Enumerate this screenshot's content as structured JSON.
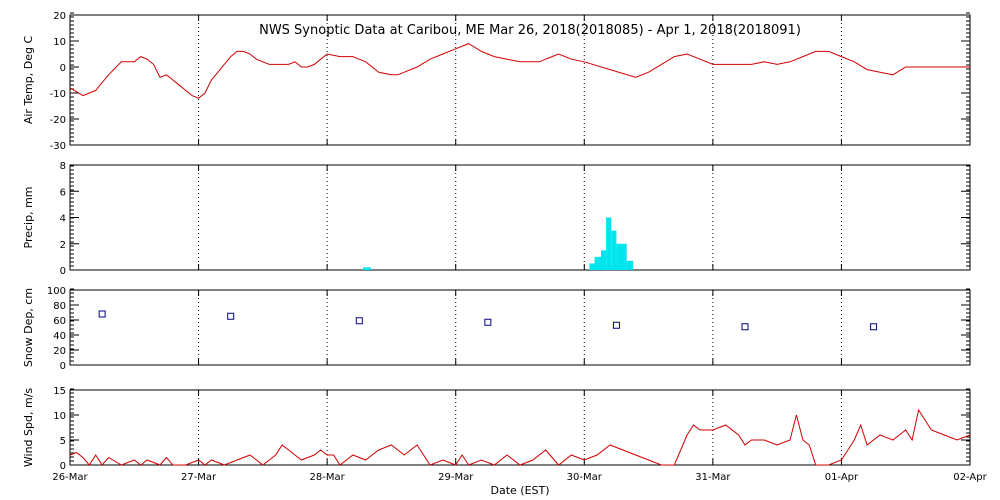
{
  "title": "NWS Synoptic Data at Caribou, ME   Mar 26, 2018(2018085) - Apr  1, 2018(2018091)",
  "xlabel": "Date (EST)",
  "x_tick_labels": [
    "26-Mar",
    "27-Mar",
    "28-Mar",
    "29-Mar",
    "30-Mar",
    "31-Mar",
    "01-Apr",
    "02-Apr"
  ],
  "colors": {
    "temp": "#d00000",
    "precip": "#00e5ee",
    "snow": "#00008b",
    "wind": "#d00000",
    "axis": "#000000"
  },
  "chart_data": [
    {
      "type": "line",
      "ylabel": "Air Temp, Deg C",
      "ylim": [
        -30,
        20
      ],
      "yticks": [
        -30,
        -20,
        -10,
        0,
        10,
        20
      ],
      "grid": true,
      "x_unit": "days since 26-Mar 00:00 EST",
      "series": [
        {
          "x": [
            0,
            0.1,
            0.2,
            0.25,
            0.3,
            0.4,
            0.5,
            0.55,
            0.6,
            0.65,
            0.7,
            0.75,
            0.8,
            0.85,
            0.9,
            0.95,
            1,
            1.05,
            1.1,
            1.15,
            1.2,
            1.25,
            1.3,
            1.35,
            1.4,
            1.45,
            1.5,
            1.55,
            1.6,
            1.65,
            1.7,
            1.75,
            1.8,
            1.85,
            1.9,
            1.95,
            2,
            2.1,
            2.2,
            2.25,
            2.3,
            2.4,
            2.5,
            2.55,
            2.6,
            2.7,
            2.8,
            2.9,
            3,
            3.1,
            3.2,
            3.3,
            3.4,
            3.5,
            3.6,
            3.65,
            3.7,
            3.75,
            3.8,
            3.9,
            4,
            4.2,
            4.4,
            4.5,
            4.6,
            4.7,
            4.8,
            4.9,
            5,
            5.1,
            5.2,
            5.3,
            5.4,
            5.5,
            5.6,
            5.7,
            5.8,
            5.9,
            6,
            6.1,
            6.2,
            6.3,
            6.4,
            6.5,
            6.6,
            6.7,
            6.8,
            6.9,
            7
          ],
          "y": [
            -8,
            -11,
            -9,
            -6,
            -3,
            2,
            2,
            4,
            3,
            1,
            -4,
            -3,
            -5,
            -7,
            -9,
            -11,
            -12,
            -10,
            -5,
            -2,
            1,
            4,
            6,
            6,
            5,
            3,
            2,
            1,
            1,
            1,
            1,
            2,
            0,
            0,
            1,
            3,
            5,
            4,
            4,
            3,
            2,
            -2,
            -3,
            -3,
            -2,
            0,
            3,
            5,
            7,
            9,
            6,
            4,
            3,
            2,
            2,
            2,
            3,
            4,
            5,
            3,
            2,
            -1,
            -4,
            -2,
            1,
            4,
            5,
            3,
            1,
            1,
            1,
            1,
            2,
            1,
            2,
            4,
            6,
            6,
            4,
            2,
            -1,
            -2,
            -3,
            0,
            0,
            0,
            0,
            0,
            0
          ],
          "name": ""
        }
      ]
    },
    {
      "type": "bar",
      "ylabel": "Precip, mm",
      "ylim": [
        0,
        8
      ],
      "yticks": [
        0,
        2,
        4,
        6,
        8
      ],
      "grid": true,
      "bars": [
        {
          "x0": 2.28,
          "x1": 2.34,
          "v": 0.2
        },
        {
          "x0": 4.04,
          "x1": 4.08,
          "v": 0.5
        },
        {
          "x0": 4.08,
          "x1": 4.13,
          "v": 1.0
        },
        {
          "x0": 4.13,
          "x1": 4.17,
          "v": 1.5
        },
        {
          "x0": 4.17,
          "x1": 4.21,
          "v": 4.0
        },
        {
          "x0": 4.21,
          "x1": 4.25,
          "v": 3.0
        },
        {
          "x0": 4.25,
          "x1": 4.33,
          "v": 2.0
        },
        {
          "x0": 4.33,
          "x1": 4.38,
          "v": 0.7
        }
      ]
    },
    {
      "type": "scatter",
      "ylabel": "Snow Dep, cm",
      "ylim": [
        0,
        100
      ],
      "yticks": [
        0,
        20,
        40,
        60,
        80,
        100
      ],
      "grid": true,
      "points": [
        {
          "x": 0.25,
          "y": 68
        },
        {
          "x": 1.25,
          "y": 65
        },
        {
          "x": 2.25,
          "y": 59
        },
        {
          "x": 3.25,
          "y": 57
        },
        {
          "x": 4.25,
          "y": 53
        },
        {
          "x": 5.25,
          "y": 51
        },
        {
          "x": 6.25,
          "y": 51
        }
      ]
    },
    {
      "type": "line",
      "ylabel": "Wind Spd, m/s",
      "ylim": [
        0,
        15
      ],
      "yticks": [
        0,
        5,
        10,
        15
      ],
      "grid": true,
      "series": [
        {
          "x": [
            0,
            0.05,
            0.1,
            0.15,
            0.2,
            0.25,
            0.3,
            0.4,
            0.5,
            0.55,
            0.6,
            0.7,
            0.75,
            0.8,
            0.9,
            1,
            1.05,
            1.1,
            1.2,
            1.3,
            1.4,
            1.5,
            1.6,
            1.65,
            1.7,
            1.8,
            1.9,
            1.95,
            2,
            2.05,
            2.1,
            2.2,
            2.3,
            2.4,
            2.5,
            2.6,
            2.7,
            2.8,
            2.9,
            3,
            3.05,
            3.1,
            3.2,
            3.3,
            3.4,
            3.5,
            3.6,
            3.7,
            3.8,
            3.9,
            4,
            4.1,
            4.2,
            4.3,
            4.4,
            4.5,
            4.6,
            4.7,
            4.8,
            4.85,
            4.9,
            5,
            5.1,
            5.2,
            5.25,
            5.3,
            5.4,
            5.5,
            5.6,
            5.65,
            5.7,
            5.75,
            5.8,
            5.9,
            6,
            6.05,
            6.1,
            6.15,
            6.2,
            6.3,
            6.4,
            6.45,
            6.5,
            6.55,
            6.6,
            6.7,
            6.8,
            6.9,
            7
          ],
          "y": [
            2,
            2.5,
            1.5,
            0,
            2,
            0,
            1.5,
            0,
            1,
            0,
            1,
            0,
            1.5,
            0,
            0,
            1,
            0,
            1,
            0,
            1,
            2,
            0,
            2,
            4,
            3,
            1,
            2,
            3,
            2,
            2,
            0,
            2,
            1,
            3,
            4,
            2,
            4,
            0,
            1,
            0,
            2,
            0,
            1,
            0,
            2,
            0,
            1,
            3,
            0,
            2,
            1,
            2,
            4,
            3,
            2,
            1,
            0,
            0,
            6,
            8,
            7,
            7,
            8,
            6,
            4,
            5,
            5,
            4,
            5,
            10,
            5,
            4,
            0,
            0,
            1,
            3,
            5,
            8,
            4,
            6,
            5,
            6,
            7,
            5,
            11,
            7,
            6,
            5,
            6
          ],
          "name": ""
        }
      ]
    }
  ]
}
